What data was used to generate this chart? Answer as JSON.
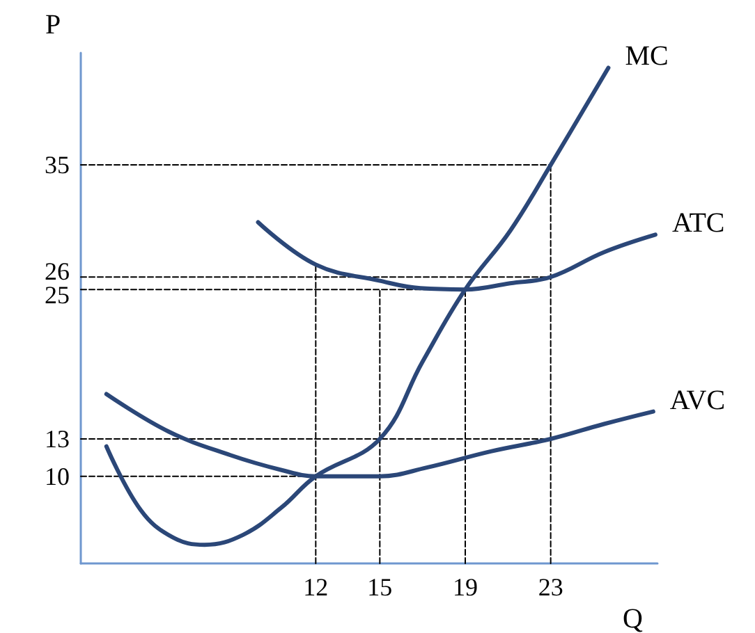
{
  "chart_data": {
    "type": "line",
    "xlabel": "Q",
    "ylabel": "P",
    "xlim": [
      1,
      28
    ],
    "ylim": [
      3,
      44
    ],
    "xticks": [
      12,
      15,
      19,
      23
    ],
    "yticks": [
      10,
      13,
      25,
      26,
      35
    ],
    "grid": false,
    "legend": false,
    "marker": "none",
    "line_style": "solid",
    "series": [
      {
        "name": "MC",
        "color": "#2b4778",
        "x": [
          2.2,
          3.8,
          5.3,
          6.8,
          8.6,
          10.4,
          12,
          15,
          17,
          19,
          21.1,
          23,
          25.7
        ],
        "values": [
          12.4,
          7.3,
          5.1,
          4.5,
          5.3,
          7.5,
          10,
          13,
          19.2,
          25,
          29.7,
          35,
          42.8
        ]
      },
      {
        "name": "ATC",
        "color": "#2b4778",
        "x": [
          9.3,
          12,
          15,
          16.9,
          19,
          21.1,
          23,
          25.5,
          27.9
        ],
        "values": [
          30.4,
          27,
          25.7,
          25.1,
          25,
          25.5,
          26,
          28,
          29.4
        ]
      },
      {
        "name": "AVC",
        "color": "#2b4778",
        "x": [
          2.2,
          5.1,
          8,
          10.4,
          12,
          15,
          17.2,
          20.2,
          23,
          25.5,
          27.8
        ],
        "values": [
          16.6,
          13.6,
          11.7,
          10.5,
          10,
          10,
          10.7,
          12,
          13,
          14.2,
          15.2
        ]
      },
      {
        "color": "#000000",
        "line_style": "dashed",
        "x": [
          1,
          23
        ],
        "values": [
          35,
          35
        ]
      },
      {
        "color": "#000000",
        "line_style": "dashed",
        "x": [
          1,
          23
        ],
        "values": [
          26,
          26
        ]
      },
      {
        "color": "#000000",
        "line_style": "dashed",
        "x": [
          1,
          19
        ],
        "values": [
          25,
          25
        ]
      },
      {
        "color": "#000000",
        "line_style": "dashed",
        "x": [
          1,
          23
        ],
        "values": [
          13,
          13
        ]
      },
      {
        "color": "#000000",
        "line_style": "dashed",
        "x": [
          1,
          12
        ],
        "values": [
          10,
          10
        ]
      },
      {
        "color": "#000000",
        "line_style": "dashed",
        "x": [
          12,
          12
        ],
        "values": [
          3,
          27
        ]
      },
      {
        "color": "#000000",
        "line_style": "dashed",
        "x": [
          15,
          15
        ],
        "values": [
          3,
          25
        ]
      },
      {
        "color": "#000000",
        "line_style": "dashed",
        "x": [
          19,
          19
        ],
        "values": [
          3,
          25
        ]
      },
      {
        "color": "#000000",
        "line_style": "dashed",
        "x": [
          23,
          23
        ],
        "values": [
          3,
          35
        ]
      }
    ]
  }
}
